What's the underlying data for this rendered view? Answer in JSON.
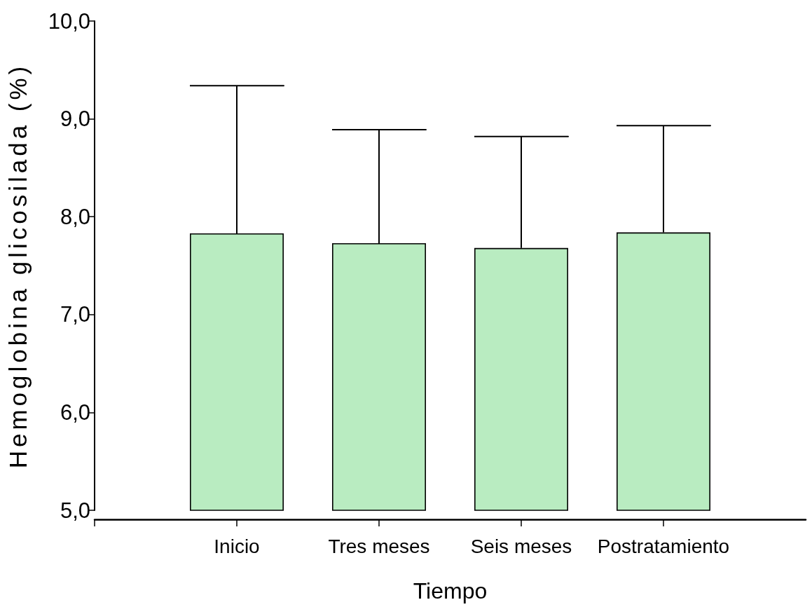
{
  "chart_data": {
    "type": "bar",
    "xlabel": "Tiempo",
    "ylabel": "Hemoglobina glicosilada (%)",
    "categories": [
      "Inicio",
      "Tres meses",
      "Seis meses",
      "Postratamiento"
    ],
    "values": [
      7.83,
      7.73,
      7.68,
      7.84
    ],
    "color": "#b9ecc1",
    "errors": [
      [
        7.83,
        9.34
      ],
      [
        7.73,
        8.89
      ],
      [
        7.68,
        8.82
      ],
      [
        7.84,
        8.93
      ]
    ],
    "ylim": [
      5,
      10
    ],
    "yticks": [
      {
        "value": 5,
        "label": "5,0"
      },
      {
        "value": 6,
        "label": "6,0"
      },
      {
        "value": 7,
        "label": "7,0"
      },
      {
        "value": 8,
        "label": "8,0"
      },
      {
        "value": 9,
        "label": "9,0"
      },
      {
        "value": 10,
        "label": "10,0"
      }
    ]
  }
}
